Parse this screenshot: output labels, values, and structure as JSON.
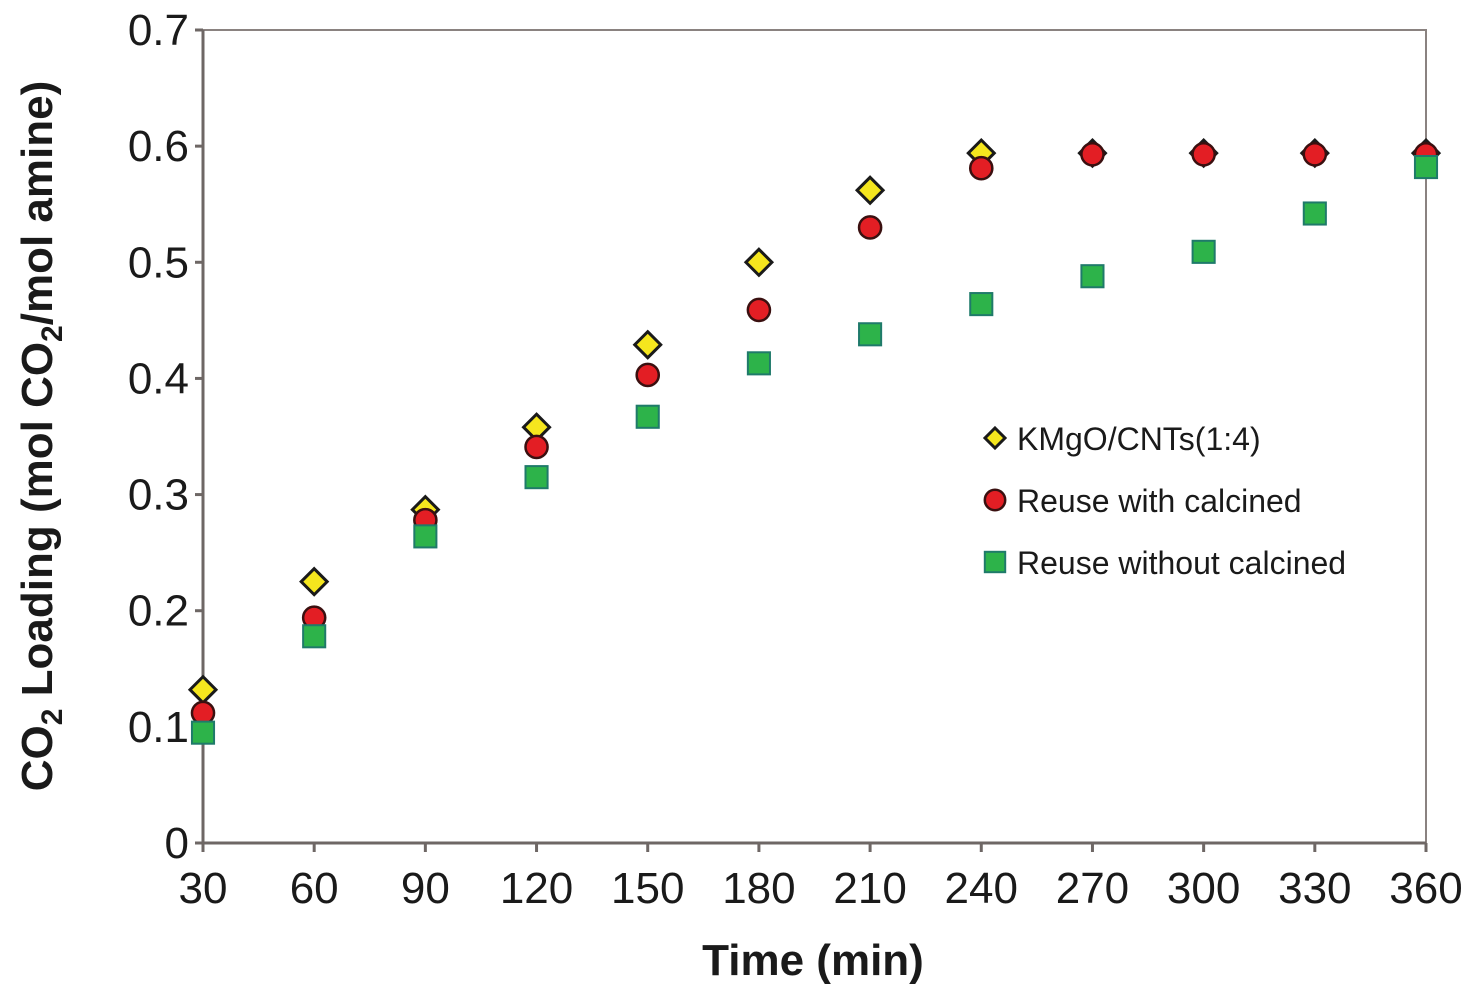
{
  "chart_data": {
    "type": "scatter",
    "title": "",
    "xlabel": "Time (min)",
    "ylabel": {
      "prefix": "CO",
      "sub1": "2",
      "middle": " Loading (mol CO",
      "sub2": "2",
      "suffix": "/mol amine)",
      "full": "CO2 Loading (mol CO2/mol amine)"
    },
    "xlim": [
      30,
      360
    ],
    "ylim": [
      0,
      0.7
    ],
    "x_ticks": [
      "30",
      "60",
      "90",
      "120",
      "150",
      "180",
      "210",
      "240",
      "270",
      "300",
      "330",
      "360"
    ],
    "y_ticks": [
      "0",
      "0.1",
      "0.2",
      "0.3",
      "0.4",
      "0.5",
      "0.6",
      "0.7"
    ],
    "grid": false,
    "legend_position": "right",
    "x": [
      30,
      60,
      90,
      120,
      150,
      180,
      210,
      240,
      270,
      300,
      330,
      360
    ],
    "series": [
      {
        "name": "KMgO/CNTs(1:4)",
        "marker": "diamond",
        "color": "#f5e61e",
        "values": [
          0.132,
          0.225,
          0.287,
          0.358,
          0.429,
          0.5,
          0.562,
          0.594,
          0.594,
          0.594,
          0.594,
          0.594
        ]
      },
      {
        "name": "Reuse with calcined",
        "marker": "circle",
        "color": "#e31e24",
        "values": [
          0.112,
          0.194,
          0.278,
          0.341,
          0.403,
          0.459,
          0.53,
          0.581,
          0.593,
          0.593,
          0.593,
          0.593
        ]
      },
      {
        "name": "Reuse without calcined",
        "marker": "square",
        "color": "#2db34a",
        "values": [
          0.095,
          0.178,
          0.264,
          0.315,
          0.367,
          0.413,
          0.438,
          0.464,
          0.488,
          0.509,
          0.542,
          0.582
        ]
      }
    ]
  }
}
